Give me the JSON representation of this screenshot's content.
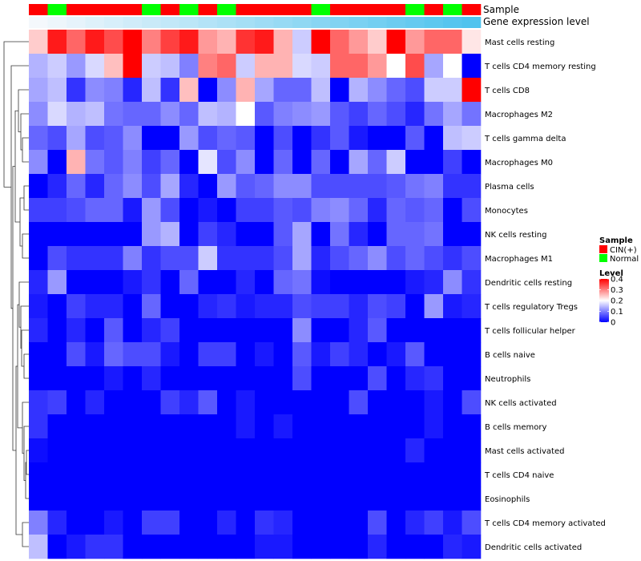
{
  "chart_data": {
    "type": "heatmap",
    "annotation_rows": [
      {
        "label": "Sample",
        "kind": "group"
      },
      {
        "label": "Gene expression level",
        "kind": "gradient",
        "from_color": "#f4f8fc",
        "to_color": "#4fc3ee"
      }
    ],
    "sample_groups": [
      "CIN",
      "Normal",
      "CIN",
      "CIN",
      "CIN",
      "CIN",
      "Normal",
      "CIN",
      "Normal",
      "CIN",
      "Normal",
      "CIN",
      "CIN",
      "CIN",
      "CIN",
      "Normal",
      "CIN",
      "CIN",
      "CIN",
      "CIN",
      "Normal",
      "CIN",
      "Normal",
      "CIN"
    ],
    "rows": [
      "Mast cells resting",
      "T cells CD4 memory resting",
      "T cells CD8",
      "Macrophages M2",
      "T cells gamma delta",
      "Macrophages M0",
      "Plasma cells",
      "Monocytes",
      "NK cells resting",
      "Macrophages M1",
      "Dendritic cells resting",
      "T cells regulatory  Tregs",
      "T cells follicular helper",
      "B cells naive",
      "Neutrophils",
      "NK cells activated",
      "B cells memory",
      "Mast cells activated",
      "T cells CD4 naive",
      "Eosinophils",
      "T cells CD4 memory activated",
      "Dendritic cells activated"
    ],
    "values": [
      [
        0.24,
        0.38,
        0.32,
        0.38,
        0.34,
        0.4,
        0.3,
        0.35,
        0.38,
        0.28,
        0.26,
        0.36,
        0.38,
        0.26,
        0.16,
        0.4,
        0.32,
        0.28,
        0.24,
        0.4,
        0.28,
        0.32,
        0.32,
        0.22
      ],
      [
        0.14,
        0.16,
        0.12,
        0.17,
        0.25,
        0.4,
        0.16,
        0.15,
        0.1,
        0.3,
        0.32,
        0.16,
        0.26,
        0.26,
        0.17,
        0.16,
        0.32,
        0.32,
        0.28,
        0.2,
        0.34,
        0.13,
        0.2,
        0.0
      ],
      [
        0.13,
        0.15,
        0.04,
        0.11,
        0.1,
        0.03,
        0.15,
        0.04,
        0.25,
        0.0,
        0.11,
        0.26,
        0.13,
        0.08,
        0.08,
        0.15,
        0.0,
        0.14,
        0.11,
        0.08,
        0.06,
        0.16,
        0.16,
        0.4
      ],
      [
        0.11,
        0.17,
        0.14,
        0.15,
        0.09,
        0.08,
        0.08,
        0.11,
        0.08,
        0.15,
        0.14,
        0.2,
        0.07,
        0.1,
        0.11,
        0.12,
        0.07,
        0.05,
        0.08,
        0.06,
        0.03,
        0.09,
        0.13,
        0.09
      ],
      [
        0.08,
        0.06,
        0.13,
        0.06,
        0.07,
        0.11,
        0.0,
        0.0,
        0.12,
        0.06,
        0.08,
        0.07,
        0.0,
        0.06,
        0.0,
        0.04,
        0.07,
        0.02,
        0.0,
        0.0,
        0.07,
        0.0,
        0.15,
        0.16
      ],
      [
        0.11,
        0.0,
        0.26,
        0.09,
        0.07,
        0.1,
        0.05,
        0.08,
        0.0,
        0.18,
        0.06,
        0.11,
        0.0,
        0.08,
        0.0,
        0.08,
        0.0,
        0.13,
        0.08,
        0.16,
        0.0,
        0.0,
        0.05,
        0.0
      ],
      [
        0.0,
        0.03,
        0.08,
        0.03,
        0.08,
        0.11,
        0.06,
        0.13,
        0.03,
        0.0,
        0.12,
        0.07,
        0.08,
        0.11,
        0.11,
        0.06,
        0.06,
        0.06,
        0.06,
        0.07,
        0.09,
        0.1,
        0.04,
        0.04
      ],
      [
        0.05,
        0.05,
        0.06,
        0.08,
        0.08,
        0.02,
        0.12,
        0.06,
        0.0,
        0.02,
        0.0,
        0.05,
        0.05,
        0.07,
        0.06,
        0.1,
        0.11,
        0.08,
        0.03,
        0.08,
        0.07,
        0.08,
        0.0,
        0.06
      ],
      [
        0.0,
        0.0,
        0.0,
        0.0,
        0.0,
        0.0,
        0.12,
        0.14,
        0.0,
        0.05,
        0.03,
        0.0,
        0.0,
        0.07,
        0.13,
        0.0,
        0.09,
        0.03,
        0.0,
        0.08,
        0.08,
        0.09,
        0.0,
        0.0
      ],
      [
        0.0,
        0.06,
        0.04,
        0.04,
        0.04,
        0.1,
        0.04,
        0.06,
        0.06,
        0.16,
        0.04,
        0.04,
        0.04,
        0.06,
        0.13,
        0.03,
        0.06,
        0.08,
        0.11,
        0.06,
        0.08,
        0.06,
        0.04,
        0.06
      ],
      [
        0.03,
        0.12,
        0.0,
        0.0,
        0.0,
        0.02,
        0.04,
        0.0,
        0.08,
        0.0,
        0.0,
        0.03,
        0.0,
        0.08,
        0.09,
        0.01,
        0.0,
        0.0,
        0.0,
        0.0,
        0.02,
        0.03,
        0.11,
        0.04
      ],
      [
        0.02,
        0.0,
        0.05,
        0.03,
        0.03,
        0.0,
        0.08,
        0.0,
        0.0,
        0.03,
        0.04,
        0.02,
        0.03,
        0.03,
        0.06,
        0.05,
        0.05,
        0.03,
        0.06,
        0.05,
        0.0,
        0.12,
        0.02,
        0.03
      ],
      [
        0.03,
        0.0,
        0.03,
        0.0,
        0.07,
        0.0,
        0.03,
        0.05,
        0.0,
        0.0,
        0.0,
        0.0,
        0.0,
        0.0,
        0.11,
        0.0,
        0.0,
        0.03,
        0.07,
        0.0,
        0.0,
        0.0,
        0.0,
        0.0
      ],
      [
        0.0,
        0.0,
        0.06,
        0.02,
        0.08,
        0.06,
        0.06,
        0.02,
        0.0,
        0.05,
        0.05,
        0.0,
        0.02,
        0.0,
        0.07,
        0.02,
        0.05,
        0.03,
        0.0,
        0.02,
        0.07,
        0.0,
        0.0,
        0.0
      ],
      [
        0.0,
        0.0,
        0.0,
        0.0,
        0.02,
        0.0,
        0.03,
        0.0,
        0.0,
        0.0,
        0.0,
        0.0,
        0.0,
        0.0,
        0.06,
        0.0,
        0.0,
        0.0,
        0.06,
        0.0,
        0.03,
        0.04,
        0.0,
        0.0
      ],
      [
        0.04,
        0.05,
        0.0,
        0.03,
        0.0,
        0.0,
        0.0,
        0.05,
        0.03,
        0.07,
        0.0,
        0.02,
        0.0,
        0.0,
        0.0,
        0.0,
        0.0,
        0.06,
        0.0,
        0.0,
        0.0,
        0.02,
        0.0,
        0.06
      ],
      [
        0.04,
        0.0,
        0.0,
        0.0,
        0.0,
        0.0,
        0.0,
        0.0,
        0.0,
        0.0,
        0.0,
        0.02,
        0.0,
        0.02,
        0.0,
        0.0,
        0.0,
        0.0,
        0.0,
        0.0,
        0.0,
        0.02,
        0.0,
        0.0
      ],
      [
        0.01,
        0.0,
        0.0,
        0.0,
        0.0,
        0.0,
        0.0,
        0.0,
        0.0,
        0.0,
        0.0,
        0.0,
        0.0,
        0.0,
        0.0,
        0.0,
        0.0,
        0.0,
        0.0,
        0.0,
        0.03,
        0.0,
        0.0,
        0.0
      ],
      [
        0.0,
        0.0,
        0.0,
        0.0,
        0.0,
        0.0,
        0.0,
        0.0,
        0.0,
        0.0,
        0.0,
        0.0,
        0.0,
        0.0,
        0.0,
        0.0,
        0.0,
        0.0,
        0.0,
        0.0,
        0.0,
        0.0,
        0.0,
        0.0
      ],
      [
        0.0,
        0.0,
        0.0,
        0.0,
        0.0,
        0.0,
        0.0,
        0.0,
        0.0,
        0.0,
        0.0,
        0.0,
        0.0,
        0.0,
        0.0,
        0.0,
        0.0,
        0.0,
        0.0,
        0.0,
        0.0,
        0.0,
        0.0,
        0.0
      ],
      [
        0.1,
        0.03,
        0.0,
        0.0,
        0.02,
        0.0,
        0.05,
        0.05,
        0.0,
        0.0,
        0.03,
        0.0,
        0.04,
        0.03,
        0.0,
        0.0,
        0.0,
        0.0,
        0.06,
        0.0,
        0.03,
        0.05,
        0.02,
        0.06
      ],
      [
        0.15,
        0.0,
        0.02,
        0.04,
        0.04,
        0.0,
        0.0,
        0.0,
        0.0,
        0.0,
        0.0,
        0.0,
        0.02,
        0.02,
        0.0,
        0.0,
        0.0,
        0.0,
        0.03,
        0.0,
        0.0,
        0.0,
        0.03,
        0.02
      ]
    ],
    "color_scale": {
      "low": "#0000ff",
      "mid": "#ffffff",
      "high": "#ff0000",
      "min": 0,
      "mid_value": 0.2,
      "max": 0.4
    },
    "legends": {
      "sample": {
        "title": "Sample",
        "items": [
          {
            "key": "CIN",
            "label": "CIN(+)",
            "color": "#ff0000"
          },
          {
            "key": "Normal",
            "label": "Normal",
            "color": "#00ff00"
          }
        ]
      },
      "level": {
        "title": "Level",
        "ticks": [
          {
            "value": 0.4,
            "label": "0.4"
          },
          {
            "value": 0.3,
            "label": "0.3"
          },
          {
            "value": 0.2,
            "label": "0.2"
          },
          {
            "value": 0.1,
            "label": "0.1"
          },
          {
            "value": 0,
            "label": "0"
          }
        ]
      }
    }
  }
}
